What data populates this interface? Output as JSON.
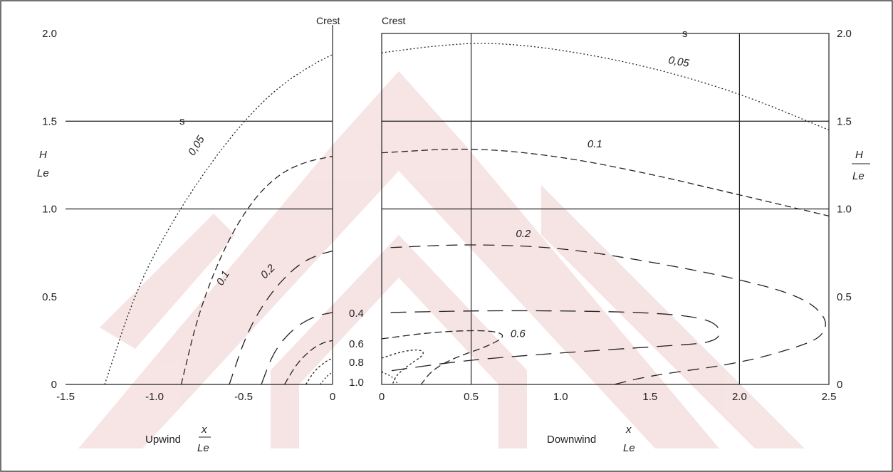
{
  "chart_data": [
    {
      "type": "line",
      "panel": "upwind",
      "crest_label": "Crest",
      "xlabel_prefix": "Upwind",
      "xlabel_numerator": "x",
      "xlabel_denominator": "Le",
      "ylabel_numerator": "H",
      "ylabel_denominator": "Le",
      "xlim": [
        -1.5,
        0
      ],
      "ylim": [
        0,
        2.0
      ],
      "xticks": [
        "-1.5",
        "-1.0",
        "-0.5",
        "0"
      ],
      "yticks": [
        "0",
        "0.5",
        "1.0",
        "1.5",
        "2.0"
      ],
      "grid": "horizontal lines at 1.0 and 1.5",
      "series": [
        {
          "name": "0.05",
          "label": "0,05",
          "sup": "s",
          "points": [
            [
              -1.28,
              0
            ],
            [
              -1.1,
              0.55
            ],
            [
              -0.9,
              0.93
            ],
            [
              -0.7,
              1.24
            ],
            [
              -0.5,
              1.5
            ],
            [
              -0.3,
              1.7
            ],
            [
              -0.1,
              1.83
            ],
            [
              0,
              1.88
            ]
          ]
        },
        {
          "name": "0.1",
          "label": "0.1",
          "points": [
            [
              -0.85,
              0
            ],
            [
              -0.75,
              0.42
            ],
            [
              -0.6,
              0.8
            ],
            [
              -0.45,
              1.05
            ],
            [
              -0.3,
              1.2
            ],
            [
              -0.15,
              1.27
            ],
            [
              0,
              1.3
            ]
          ]
        },
        {
          "name": "0.2",
          "label": "0.2",
          "points": [
            [
              -0.58,
              0
            ],
            [
              -0.48,
              0.3
            ],
            [
              -0.35,
              0.52
            ],
            [
              -0.2,
              0.68
            ],
            [
              -0.08,
              0.74
            ],
            [
              0,
              0.76
            ]
          ]
        },
        {
          "name": "0.4",
          "points": [
            [
              -0.4,
              0
            ],
            [
              -0.33,
              0.19
            ],
            [
              -0.22,
              0.32
            ],
            [
              -0.1,
              0.39
            ],
            [
              0,
              0.41
            ]
          ]
        },
        {
          "name": "0.6",
          "points": [
            [
              -0.27,
              0
            ],
            [
              -0.2,
              0.12
            ],
            [
              -0.12,
              0.2
            ],
            [
              -0.05,
              0.24
            ],
            [
              0,
              0.25
            ]
          ]
        },
        {
          "name": "0.8",
          "points": [
            [
              -0.15,
              0
            ],
            [
              -0.1,
              0.08
            ],
            [
              -0.04,
              0.13
            ],
            [
              0,
              0.15
            ]
          ]
        },
        {
          "name": "1.0",
          "points": [
            [
              -0.07,
              0
            ],
            [
              -0.03,
              0.05
            ],
            [
              0,
              0.07
            ]
          ]
        }
      ]
    },
    {
      "type": "line",
      "panel": "downwind",
      "crest_label": "Crest",
      "xlabel_prefix": "Downwind",
      "xlabel_numerator": "x",
      "xlabel_denominator": "Le",
      "ylabel_numerator": "H",
      "ylabel_denominator": "Le",
      "xlim": [
        0,
        2.5
      ],
      "ylim": [
        0,
        2.0
      ],
      "xticks": [
        "0",
        "0.5",
        "1.0",
        "1.5",
        "2.0",
        "2.5"
      ],
      "yticks": [
        "0",
        "0.5",
        "1.0",
        "1.5",
        "2.0"
      ],
      "grid": "lines at x = 0.5, 2.0 and y = 1.0, 1.5",
      "series": [
        {
          "name": "0.05",
          "label": "0,05",
          "sup": "s",
          "points": [
            [
              0,
              1.89
            ],
            [
              0.3,
              1.93
            ],
            [
              0.6,
              1.95
            ],
            [
              1.0,
              1.91
            ],
            [
              1.5,
              1.81
            ],
            [
              2.0,
              1.66
            ],
            [
              2.5,
              1.45
            ]
          ]
        },
        {
          "name": "0.1",
          "label": "0.1",
          "points": [
            [
              0,
              1.32
            ],
            [
              0.5,
              1.35
            ],
            [
              1.0,
              1.3
            ],
            [
              1.5,
              1.2
            ],
            [
              2.0,
              1.08
            ],
            [
              2.5,
              0.96
            ]
          ]
        },
        {
          "name": "0.2",
          "label": "0.2",
          "points": [
            [
              0.05,
              0.78
            ],
            [
              0.5,
              0.8
            ],
            [
              1.0,
              0.78
            ],
            [
              1.5,
              0.7
            ],
            [
              2.0,
              0.6
            ],
            [
              2.35,
              0.5
            ],
            [
              2.49,
              0.38
            ],
            [
              2.47,
              0.28
            ],
            [
              2.35,
              0.22
            ],
            [
              2.0,
              0.12
            ],
            [
              1.5,
              0.05
            ],
            [
              1.3,
              0
            ]
          ]
        },
        {
          "name": "0.4",
          "points": [
            [
              0.05,
              0.41
            ],
            [
              0.5,
              0.42
            ],
            [
              1.0,
              0.42
            ],
            [
              1.5,
              0.41
            ],
            [
              1.8,
              0.38
            ],
            [
              1.9,
              0.32
            ],
            [
              1.87,
              0.24
            ],
            [
              1.6,
              0.22
            ],
            [
              1.0,
              0.18
            ],
            [
              0.5,
              0.14
            ],
            [
              0.2,
              0.1
            ],
            [
              0,
              0.07
            ]
          ]
        },
        {
          "name": "0.6",
          "label": "0.6",
          "points": [
            [
              0,
              0.26
            ],
            [
              0.3,
              0.3
            ],
            [
              0.6,
              0.31
            ],
            [
              0.7,
              0.28
            ],
            [
              0.6,
              0.22
            ],
            [
              0.4,
              0.15
            ],
            [
              0.28,
              0.08
            ],
            [
              0.22,
              0
            ]
          ]
        },
        {
          "name": "0.8",
          "points": [
            [
              0,
              0.15
            ],
            [
              0.12,
              0.19
            ],
            [
              0.22,
              0.2
            ],
            [
              0.24,
              0.17
            ],
            [
              0.15,
              0.11
            ],
            [
              0.08,
              0.05
            ],
            [
              0.06,
              0
            ]
          ]
        },
        {
          "name": "1.0",
          "points": [
            [
              0,
              0.07
            ],
            [
              0.05,
              0.05
            ],
            [
              0.08,
              0.02
            ],
            [
              0.09,
              0
            ]
          ]
        }
      ]
    }
  ],
  "center_labels": [
    "0.4",
    "0.6",
    "0.8",
    "1.0"
  ]
}
